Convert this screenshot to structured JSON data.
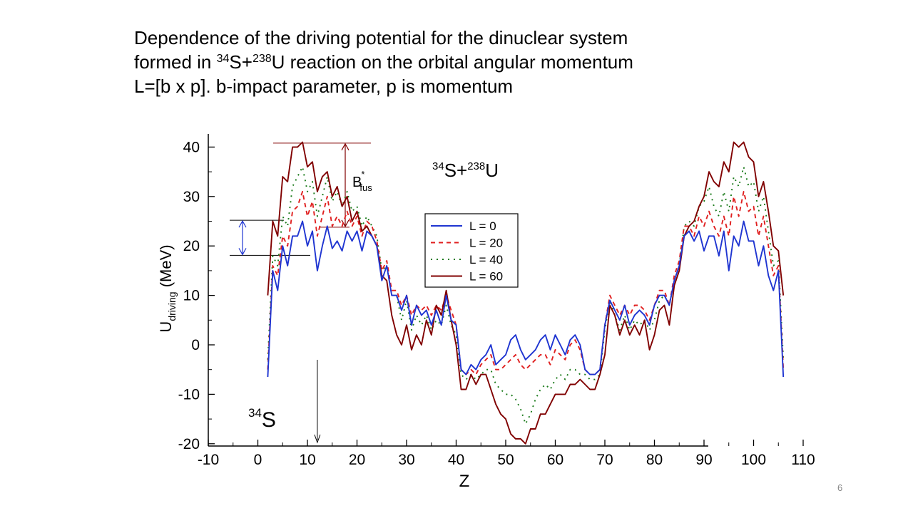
{
  "slide": {
    "title_line1": "Dependence  of the driving potential for the dinuclear system",
    "title_line2_pre": "formed in ",
    "title_line2_sup1": "34",
    "title_line2_mid": "S+",
    "title_line2_sup2": "238",
    "title_line2_post": "U reaction on the orbital angular momentum",
    "title_line3": "L=[b x p].  b-impact parameter,  p is momentum",
    "page_number": "6"
  },
  "chart_data": {
    "type": "line",
    "xlabel": "Z",
    "ylabel_main": "U",
    "ylabel_sub": "driving",
    "ylabel_unit": "(MeV)",
    "xlim": [
      -10,
      110
    ],
    "ylim": [
      -20,
      43
    ],
    "xticks": [
      -10,
      0,
      10,
      20,
      30,
      40,
      50,
      60,
      70,
      80,
      90,
      100,
      110
    ],
    "yticks": [
      -20,
      -10,
      0,
      10,
      20,
      30,
      40
    ],
    "grid": false,
    "legend_position": "center-right",
    "annotations": {
      "reaction_sup1": "34",
      "reaction_mid": "S+",
      "reaction_sup2": "238",
      "reaction_post": "U",
      "bfus_main": "B",
      "bfus_sup": "*",
      "bfus_sub": "fus",
      "projectile_sup": "34",
      "projectile_main": "S",
      "projectile_z": 12
    },
    "series": [
      {
        "name": "L = 0",
        "color": "#1f35d1",
        "dash": "solid",
        "x": [
          2,
          3,
          4,
          5,
          6,
          7,
          8,
          9,
          10,
          11,
          12,
          13,
          14,
          15,
          16,
          17,
          18,
          19,
          20,
          21,
          22,
          23,
          24,
          25,
          26,
          27,
          28,
          29,
          30,
          31,
          32,
          33,
          34,
          35,
          36,
          37,
          38,
          39,
          40,
          41,
          42,
          43,
          44,
          45,
          46,
          47,
          48,
          49,
          50,
          51,
          52,
          53,
          54,
          55,
          56,
          57,
          58,
          59,
          60,
          61,
          62,
          63,
          64,
          65,
          66,
          67,
          68,
          69,
          70,
          71,
          72,
          73,
          74,
          75,
          76,
          77,
          78,
          79,
          80,
          81,
          82,
          83,
          84,
          85,
          86,
          87,
          88,
          89,
          90,
          91,
          92,
          93,
          94,
          95,
          96,
          97,
          98,
          99,
          100,
          101,
          102,
          103,
          104,
          105,
          106
        ],
        "y": [
          -6.5,
          15,
          11,
          20,
          16,
          22,
          22,
          25,
          20,
          23,
          15,
          20,
          24,
          19.5,
          21,
          19,
          23,
          21,
          23,
          19,
          23,
          22,
          20,
          13,
          16,
          10,
          10,
          7,
          10,
          4,
          8,
          6,
          7,
          4,
          7,
          4,
          10,
          5,
          4,
          -5,
          -6,
          -4,
          -5,
          -3,
          -2,
          0,
          -4,
          -3,
          -2,
          1,
          2,
          -1,
          -3,
          -2,
          -1,
          1,
          2,
          -1,
          2,
          0,
          -2,
          1,
          2,
          0,
          -5,
          -6,
          -6,
          -5,
          4,
          9,
          7,
          5,
          8,
          4,
          6,
          7,
          6,
          4,
          8,
          10,
          10,
          8,
          13,
          16,
          22,
          23,
          21,
          23,
          19,
          22,
          22,
          18,
          23,
          15,
          22,
          20,
          25,
          21,
          21,
          16,
          20,
          14,
          11,
          15,
          -6.5
        ]
      },
      {
        "name": "L = 20",
        "color": "#e02020",
        "dash": "6,5",
        "x": [
          2,
          3,
          4,
          5,
          6,
          7,
          8,
          9,
          10,
          11,
          12,
          13,
          14,
          15,
          16,
          17,
          18,
          19,
          20,
          21,
          22,
          23,
          24,
          25,
          26,
          27,
          28,
          29,
          30,
          31,
          32,
          33,
          34,
          35,
          36,
          37,
          38,
          39,
          40,
          41,
          42,
          43,
          44,
          45,
          46,
          47,
          48,
          49,
          50,
          51,
          52,
          53,
          54,
          55,
          56,
          57,
          58,
          59,
          60,
          61,
          62,
          63,
          64,
          65,
          66,
          67,
          68,
          69,
          70,
          71,
          72,
          73,
          74,
          75,
          76,
          77,
          78,
          79,
          80,
          81,
          82,
          83,
          84,
          85,
          86,
          87,
          88,
          89,
          90,
          91,
          92,
          93,
          94,
          95,
          96,
          97,
          98,
          99,
          100,
          101,
          102,
          103,
          104,
          105,
          106
        ],
        "y": [
          -5,
          16,
          14,
          22,
          20,
          27,
          28,
          31,
          26,
          29,
          22,
          26,
          30,
          24,
          26,
          24,
          27,
          24,
          26,
          22,
          25,
          24,
          21,
          15,
          17,
          11,
          11,
          8,
          10,
          6,
          8,
          7,
          8,
          6,
          8,
          7,
          10,
          7,
          4,
          -5,
          -6,
          -5,
          -6,
          -4,
          -3,
          -2,
          -5,
          -5,
          -4,
          -3,
          -2,
          -4,
          -5,
          -4,
          -3,
          -2,
          -2,
          -4,
          -1,
          -2,
          -3,
          0,
          1,
          -1,
          -5,
          -6,
          -6,
          -5,
          4,
          10,
          8,
          6,
          8,
          6,
          8,
          8,
          7,
          5,
          8,
          11,
          11,
          8,
          14,
          17,
          24,
          24,
          22,
          26,
          24,
          27,
          24,
          22,
          26,
          22,
          30,
          26,
          31,
          27,
          28,
          22,
          26,
          20,
          14,
          16,
          -5
        ]
      },
      {
        "name": "L = 40",
        "color": "#1a7a1a",
        "dash": "2,6",
        "x": [
          2,
          3,
          4,
          5,
          6,
          7,
          8,
          9,
          10,
          11,
          12,
          13,
          14,
          15,
          16,
          17,
          18,
          19,
          20,
          21,
          22,
          23,
          24,
          25,
          26,
          27,
          28,
          29,
          30,
          31,
          32,
          33,
          34,
          35,
          36,
          37,
          38,
          39,
          40,
          41,
          42,
          43,
          44,
          45,
          46,
          47,
          48,
          49,
          50,
          51,
          52,
          53,
          54,
          55,
          56,
          57,
          58,
          59,
          60,
          61,
          62,
          63,
          64,
          65,
          66,
          67,
          68,
          69,
          70,
          71,
          72,
          73,
          74,
          75,
          76,
          77,
          78,
          79,
          80,
          81,
          82,
          83,
          84,
          85,
          86,
          87,
          88,
          89,
          90,
          91,
          92,
          93,
          94,
          95,
          96,
          97,
          98,
          99,
          100,
          101,
          102,
          103,
          104,
          105,
          106
        ],
        "y": [
          -3,
          18,
          16,
          26,
          24,
          32,
          34,
          36,
          31,
          33,
          26,
          30,
          34,
          29,
          31,
          28,
          31,
          27,
          28,
          24,
          26,
          24,
          22,
          15,
          16,
          10,
          10,
          5,
          9,
          3,
          6,
          4,
          6,
          3,
          5,
          4,
          8,
          4,
          2,
          -6,
          -7,
          -6,
          -7,
          -6,
          -5,
          -5,
          -8,
          -9,
          -10,
          -10,
          -11,
          -13,
          -16,
          -14,
          -11,
          -9,
          -8,
          -9,
          -7,
          -6,
          -7,
          -5,
          -5,
          -6,
          -6,
          -7,
          -7,
          -6,
          3,
          9,
          6,
          3,
          6,
          3,
          5,
          4,
          5,
          3,
          5,
          9,
          10,
          8,
          13,
          16,
          24,
          25,
          24,
          28,
          29,
          32,
          28,
          26,
          31,
          27,
          34,
          32,
          36,
          32,
          33,
          27,
          30,
          23,
          16,
          17,
          -3
        ]
      },
      {
        "name": "L = 60",
        "color": "#800000",
        "dash": "solid",
        "x": [
          2,
          3,
          4,
          5,
          6,
          7,
          8,
          9,
          10,
          11,
          12,
          13,
          14,
          15,
          16,
          17,
          18,
          19,
          20,
          21,
          22,
          23,
          24,
          25,
          26,
          27,
          28,
          29,
          30,
          31,
          32,
          33,
          34,
          35,
          36,
          37,
          38,
          39,
          40,
          41,
          42,
          43,
          44,
          45,
          46,
          47,
          48,
          49,
          50,
          51,
          52,
          53,
          54,
          55,
          56,
          57,
          58,
          59,
          60,
          61,
          62,
          63,
          64,
          65,
          66,
          67,
          68,
          69,
          70,
          71,
          72,
          73,
          74,
          75,
          76,
          77,
          78,
          79,
          80,
          81,
          82,
          83,
          84,
          85,
          86,
          87,
          88,
          89,
          90,
          91,
          92,
          93,
          94,
          95,
          96,
          97,
          98,
          99,
          100,
          101,
          102,
          103,
          104,
          105,
          106
        ],
        "y": [
          10,
          25,
          22,
          34,
          33,
          40,
          40,
          41,
          36,
          37,
          31,
          34,
          35,
          30,
          32,
          28,
          30,
          25,
          27,
          23,
          24,
          22,
          20,
          14,
          13,
          6,
          2,
          0,
          4,
          -1,
          2,
          0,
          5,
          2,
          8,
          6,
          11,
          5,
          0,
          -9,
          -9,
          -6,
          -8,
          -6,
          -6,
          -9,
          -12,
          -14,
          -15,
          -18,
          -19,
          -19,
          -20,
          -17,
          -17,
          -14,
          -14,
          -12,
          -10,
          -10,
          -10,
          -8,
          -8,
          -7,
          -8,
          -9,
          -9,
          -6,
          -2,
          8,
          6,
          2,
          5,
          2,
          4,
          2,
          5,
          -1,
          2,
          7,
          8,
          4,
          12,
          15,
          22,
          24,
          25,
          28,
          30,
          35,
          33,
          32,
          37,
          35,
          41,
          40,
          41,
          38,
          37,
          30,
          33,
          27,
          20,
          19,
          10
        ]
      }
    ]
  }
}
